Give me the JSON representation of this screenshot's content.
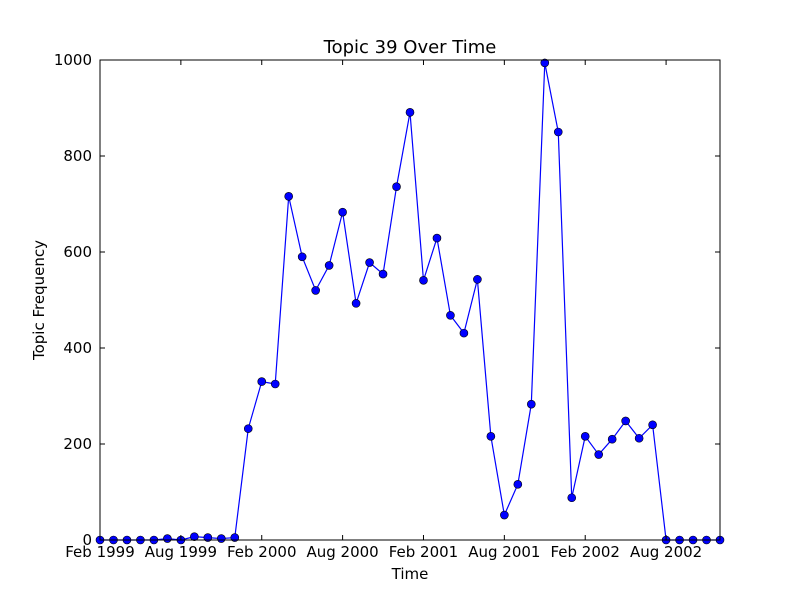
{
  "chart_data": {
    "type": "line",
    "title": "Topic 39 Over Time",
    "xlabel": "Time",
    "ylabel": "Topic Frequency",
    "ylim": [
      0,
      1000
    ],
    "yticks": [
      0,
      200,
      400,
      600,
      800,
      1000
    ],
    "xlim": [
      "1999-02",
      "2002-12"
    ],
    "xticks": [
      {
        "date": "1999-02",
        "label": "Feb 1999"
      },
      {
        "date": "1999-08",
        "label": "Aug 1999"
      },
      {
        "date": "2000-02",
        "label": "Feb 2000"
      },
      {
        "date": "2000-08",
        "label": "Aug 2000"
      },
      {
        "date": "2001-02",
        "label": "Feb 2001"
      },
      {
        "date": "2001-08",
        "label": "Aug 2001"
      },
      {
        "date": "2002-02",
        "label": "Feb 2002"
      },
      {
        "date": "2002-08",
        "label": "Aug 2002"
      }
    ],
    "line_color": "#0000ff",
    "marker_color": "#0000ff",
    "grid": false,
    "series": [
      {
        "x": [
          "1999-02",
          "1999-03",
          "1999-04",
          "1999-05",
          "1999-06",
          "1999-07",
          "1999-08",
          "1999-09",
          "1999-10",
          "1999-11",
          "1999-12",
          "2000-01",
          "2000-02",
          "2000-03",
          "2000-04",
          "2000-05",
          "2000-06",
          "2000-07",
          "2000-08",
          "2000-09",
          "2000-10",
          "2000-11",
          "2000-12",
          "2001-01",
          "2001-02",
          "2001-03",
          "2001-04",
          "2001-05",
          "2001-06",
          "2001-07",
          "2001-08",
          "2001-09",
          "2001-10",
          "2001-11",
          "2001-12",
          "2002-01",
          "2002-02",
          "2002-03",
          "2002-04",
          "2002-05",
          "2002-06",
          "2002-07",
          "2002-08",
          "2002-09",
          "2002-10",
          "2002-11",
          "2002-12"
        ],
        "values": [
          0,
          0,
          0,
          0,
          0,
          3,
          0,
          7,
          5,
          3,
          5,
          232,
          330,
          325,
          716,
          590,
          520,
          572,
          683,
          493,
          578,
          554,
          736,
          891,
          541,
          629,
          468,
          431,
          543,
          216,
          52,
          116,
          283,
          994,
          850,
          88,
          216,
          178,
          210,
          248,
          212,
          240,
          0,
          0,
          0,
          0,
          0
        ]
      }
    ]
  }
}
